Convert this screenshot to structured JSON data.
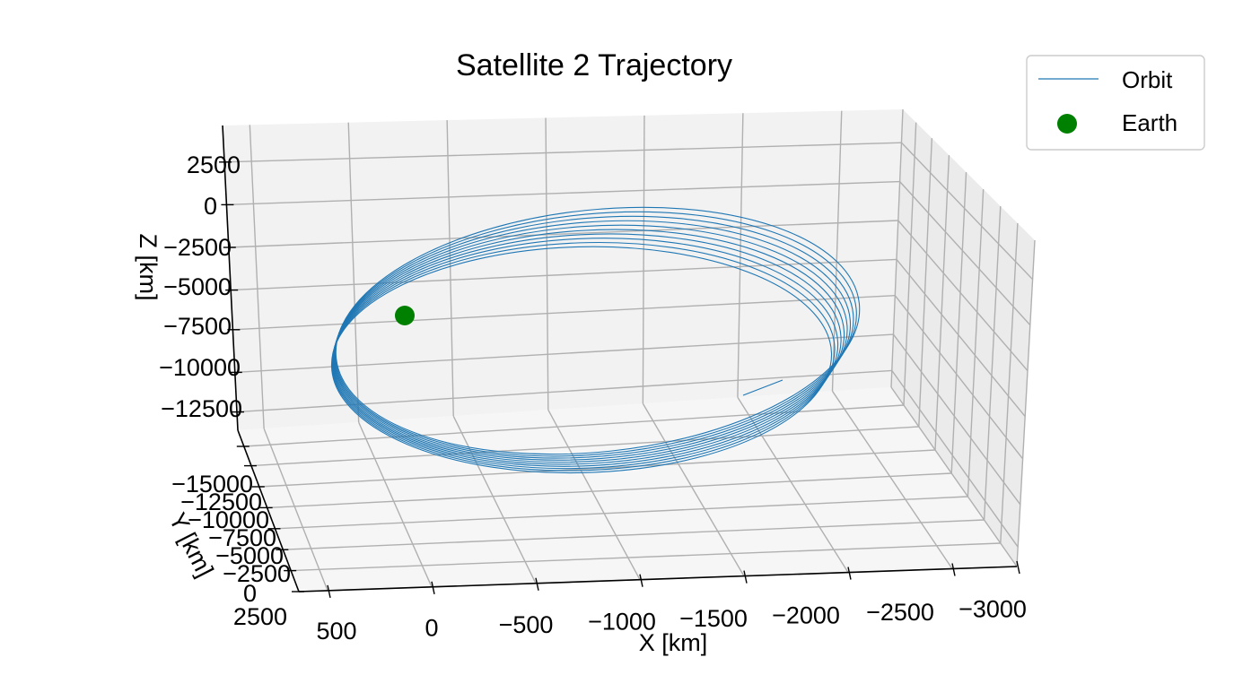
{
  "chart_data": {
    "type": "line",
    "title": "Satellite 2 Trajectory",
    "xlabel": "X [km]",
    "ylabel": "Y [km]",
    "zlabel": "Z [km]",
    "projection": "3d",
    "grid": true,
    "legend_position": "top-right",
    "x_ticks": [
      "500",
      "0",
      "−500",
      "−1000",
      "−1500",
      "−2000",
      "−2500",
      "−3000"
    ],
    "y_ticks": [
      "−15000",
      "−12500",
      "−10000",
      "−7500",
      "−5000",
      "−2500",
      "0",
      "2500"
    ],
    "z_ticks": [
      "2500",
      "0",
      "−2500",
      "−5000",
      "−7500",
      "−10000",
      "−12500"
    ],
    "series": [
      {
        "name": "Orbit",
        "kind": "line",
        "color": "#1f77b4",
        "revolutions": 10
      },
      {
        "name": "Earth",
        "kind": "scatter",
        "color": "#008000",
        "x": [
          0
        ],
        "y": [
          0
        ],
        "z": [
          0
        ]
      }
    ]
  }
}
